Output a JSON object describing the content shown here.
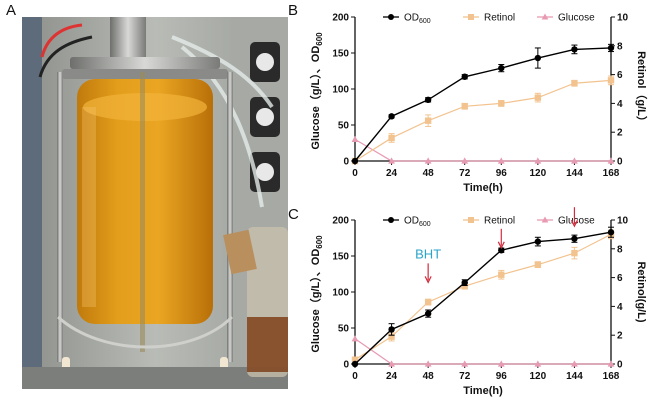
{
  "figure": {
    "panel_a_label": "A",
    "panel_b_label": "B",
    "panel_c_label": "C"
  },
  "photo": {
    "description_icon": "bioreactor-photo"
  },
  "colors": {
    "od600": "#000000",
    "retinol": "#f2c38f",
    "glucose": "#e79ab2"
  },
  "chart_data": [
    {
      "type": "line",
      "panel": "B",
      "x": [
        0,
        24,
        48,
        72,
        96,
        120,
        144,
        168
      ],
      "xlabel": "Time(h)",
      "xticks": [
        "0",
        "24",
        "48",
        "72",
        "96",
        "120",
        "144",
        "168"
      ],
      "ylabel_left": "Glucose（g/L）、OD",
      "ylabel_left_sub": "600",
      "ylabel_right": "Retinol（g/L）",
      "ylim_left": [
        0,
        200
      ],
      "ylim_right": [
        0,
        10
      ],
      "yticks_left": [
        "0",
        "50",
        "100",
        "150",
        "200"
      ],
      "yticks_right": [
        "0",
        "2",
        "4",
        "6",
        "8",
        "10"
      ],
      "legend": [
        {
          "label": "OD",
          "sub": "600",
          "series": "od600"
        },
        {
          "label": "Retinol",
          "sub": "",
          "series": "retinol"
        },
        {
          "label": "Glucose",
          "sub": "",
          "series": "glucose"
        }
      ],
      "series": [
        {
          "key": "od600",
          "name": "OD600",
          "axis": "left",
          "marker": "circle",
          "values": [
            0,
            62,
            85,
            117,
            129,
            143,
            155,
            157
          ],
          "err": [
            0,
            2,
            3,
            3,
            5,
            14,
            6,
            5
          ]
        },
        {
          "key": "retinol",
          "name": "Retinol",
          "axis": "right",
          "marker": "square",
          "values": [
            0,
            1.6,
            2.8,
            3.8,
            4.0,
            4.4,
            5.4,
            5.6
          ],
          "err": [
            0,
            0.3,
            0.4,
            0.2,
            0.2,
            0.3,
            0.2,
            0.3
          ]
        },
        {
          "key": "glucose",
          "name": "Glucose",
          "axis": "left",
          "marker": "triangle",
          "values": [
            30,
            0,
            0,
            0,
            0,
            0,
            0,
            0
          ],
          "err": [
            0,
            0,
            0,
            0,
            0,
            0,
            0,
            0
          ]
        }
      ],
      "annotations": []
    },
    {
      "type": "line",
      "panel": "C",
      "x": [
        0,
        24,
        48,
        72,
        96,
        120,
        144,
        168
      ],
      "xlabel": "Time(h)",
      "xticks": [
        "0",
        "24",
        "48",
        "72",
        "96",
        "120",
        "144",
        "168"
      ],
      "ylabel_left": "Glucose（g/L）、OD",
      "ylabel_left_sub": "600",
      "ylabel_right": "Retinol(g/L)",
      "ylim_left": [
        0,
        200
      ],
      "ylim_right": [
        0,
        10
      ],
      "yticks_left": [
        "0",
        "50",
        "100",
        "150",
        "200"
      ],
      "yticks_right": [
        "0",
        "2",
        "4",
        "6",
        "8",
        "10"
      ],
      "legend": [
        {
          "label": "OD",
          "sub": "600",
          "series": "od600"
        },
        {
          "label": "Retinol",
          "sub": "",
          "series": "retinol"
        },
        {
          "label": "Glucose",
          "sub": "",
          "series": "glucose"
        }
      ],
      "series": [
        {
          "key": "od600",
          "name": "OD600",
          "axis": "left",
          "marker": "circle",
          "values": [
            0,
            48,
            70,
            113,
            158,
            170,
            174,
            183
          ],
          "err": [
            0,
            8,
            5,
            4,
            3,
            6,
            5,
            7
          ]
        },
        {
          "key": "retinol",
          "name": "Retinol",
          "axis": "right",
          "marker": "square",
          "values": [
            0.3,
            1.9,
            4.3,
            5.4,
            6.2,
            6.9,
            7.7,
            9.0
          ],
          "err": [
            0,
            0.3,
            0.2,
            0.2,
            0.3,
            0.2,
            0.4,
            0.3
          ]
        },
        {
          "key": "glucose",
          "name": "Glucose",
          "axis": "left",
          "marker": "triangle",
          "values": [
            35,
            0,
            0,
            0,
            0,
            0,
            0,
            0
          ],
          "err": [
            0,
            0,
            0,
            0,
            0,
            0,
            0,
            0
          ]
        }
      ],
      "annotations": [
        {
          "text": "BHT",
          "x": 48,
          "y_left": 112,
          "color": "#2aa3c8",
          "arrow": true,
          "arrow_color": "#d22b3c"
        },
        {
          "text": "",
          "x": 96,
          "y_left": 160,
          "color": "#d22b3c",
          "arrow": true,
          "arrow_color": "#d22b3c"
        },
        {
          "text": "",
          "x": 144,
          "y_left": 190,
          "color": "#d22b3c",
          "arrow": true,
          "arrow_color": "#d22b3c"
        }
      ]
    }
  ]
}
